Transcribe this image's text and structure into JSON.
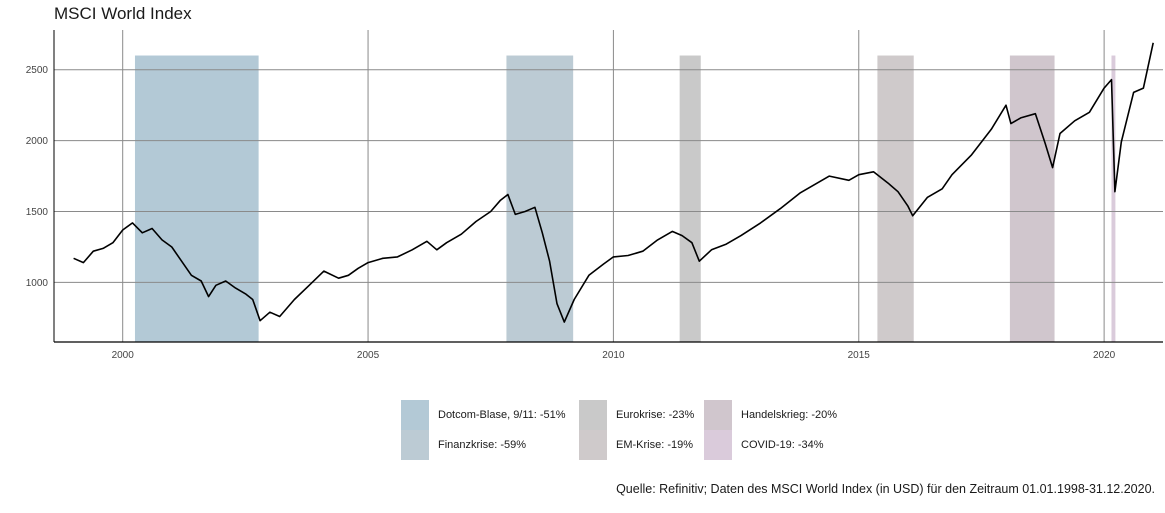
{
  "chart_data": {
    "type": "line",
    "title": "MSCI World Index",
    "xlabel": "",
    "ylabel": "",
    "xlim": [
      1998.6,
      2021.2
    ],
    "ylim": [
      580,
      2780
    ],
    "x_ticks": [
      2000,
      2005,
      2010,
      2015,
      2020
    ],
    "x_tick_labels": [
      "2000",
      "2005",
      "2010",
      "2015",
      "2020"
    ],
    "y_ticks": [
      1000,
      1500,
      2000,
      2500
    ],
    "y_tick_labels": [
      "1000",
      "1500",
      "2000",
      "2500"
    ],
    "grid": true,
    "series": [
      {
        "x": [
          1999.0,
          1999.2,
          1999.4,
          1999.6,
          1999.8,
          2000.0,
          2000.2,
          2000.4,
          2000.6,
          2000.8,
          2001.0,
          2001.2,
          2001.4,
          2001.6,
          2001.75,
          2001.9,
          2002.1,
          2002.3,
          2002.5,
          2002.65,
          2002.8,
          2003.0,
          2003.2,
          2003.5,
          2003.8,
          2004.1,
          2004.4,
          2004.6,
          2004.8,
          2005.0,
          2005.3,
          2005.6,
          2005.9,
          2006.2,
          2006.4,
          2006.6,
          2006.9,
          2007.2,
          2007.5,
          2007.7,
          2007.85,
          2008.0,
          2008.2,
          2008.4,
          2008.55,
          2008.7,
          2008.85,
          2009.0,
          2009.2,
          2009.5,
          2009.8,
          2010.0,
          2010.3,
          2010.6,
          2010.9,
          2011.2,
          2011.4,
          2011.6,
          2011.75,
          2012.0,
          2012.3,
          2012.6,
          2013.0,
          2013.4,
          2013.8,
          2014.1,
          2014.4,
          2014.8,
          2015.0,
          2015.3,
          2015.6,
          2015.8,
          2016.0,
          2016.1,
          2016.4,
          2016.7,
          2016.9,
          2017.3,
          2017.7,
          2018.0,
          2018.1,
          2018.3,
          2018.6,
          2018.8,
          2018.95,
          2019.1,
          2019.4,
          2019.7,
          2020.0,
          2020.15,
          2020.22,
          2020.35,
          2020.6,
          2020.8,
          2021.0
        ],
        "y": [
          1170,
          1140,
          1220,
          1240,
          1280,
          1370,
          1420,
          1350,
          1380,
          1300,
          1250,
          1150,
          1050,
          1010,
          900,
          980,
          1010,
          960,
          920,
          880,
          730,
          790,
          760,
          880,
          980,
          1080,
          1030,
          1050,
          1100,
          1140,
          1170,
          1180,
          1230,
          1290,
          1230,
          1280,
          1340,
          1430,
          1500,
          1580,
          1620,
          1480,
          1500,
          1530,
          1350,
          1150,
          850,
          720,
          880,
          1050,
          1130,
          1180,
          1190,
          1220,
          1300,
          1360,
          1330,
          1280,
          1150,
          1230,
          1270,
          1330,
          1420,
          1520,
          1630,
          1690,
          1750,
          1720,
          1760,
          1780,
          1700,
          1640,
          1540,
          1470,
          1600,
          1660,
          1760,
          1900,
          2080,
          2250,
          2120,
          2160,
          2190,
          1980,
          1810,
          2050,
          2140,
          2200,
          2370,
          2430,
          1640,
          1990,
          2340,
          2370,
          2690
        ]
      }
    ],
    "bands": [
      {
        "label": "Dotcom-Blase, 9/11: -51%",
        "start": 2000.25,
        "end": 2002.77,
        "color": "#b3c9d6"
      },
      {
        "label": "Finanzkrise: -59%",
        "start": 2007.82,
        "end": 2009.18,
        "color": "#bccbd4"
      },
      {
        "label": "Eurokrise: -23%",
        "start": 2011.35,
        "end": 2011.78,
        "color": "#c9c9c9"
      },
      {
        "label": "EM-Krise: -19%",
        "start": 2015.38,
        "end": 2016.12,
        "color": "#cfcacb"
      },
      {
        "label": "Handelskrieg: -20%",
        "start": 2018.08,
        "end": 2018.99,
        "color": "#d0c6cd"
      },
      {
        "label": "COVID-19: -34%",
        "start": 2020.15,
        "end": 2020.23,
        "color": "#dacbdb"
      }
    ],
    "band_top": 2600,
    "legend_position": "bottom",
    "line_color": "#000000",
    "grid_color": "#8a8a8a",
    "axis_color": "#000000"
  },
  "legend": {
    "items": [
      {
        "label": "Dotcom-Blase, 9/11: -51%",
        "color": "#b3c9d6"
      },
      {
        "label": "Eurokrise: -23%",
        "color": "#c9c9c9"
      },
      {
        "label": "Handelskrieg: -20%",
        "color": "#d0c6cd"
      },
      {
        "label": "Finanzkrise: -59%",
        "color": "#bccbd4"
      },
      {
        "label": "EM-Krise: -19%",
        "color": "#cfcacb"
      },
      {
        "label": "COVID-19: -34%",
        "color": "#dacbdb"
      }
    ]
  },
  "source_note": "Quelle: Refinitiv; Daten des MSCI World Index (in USD) für den Zeitraum 01.01.1998-31.12.2020."
}
